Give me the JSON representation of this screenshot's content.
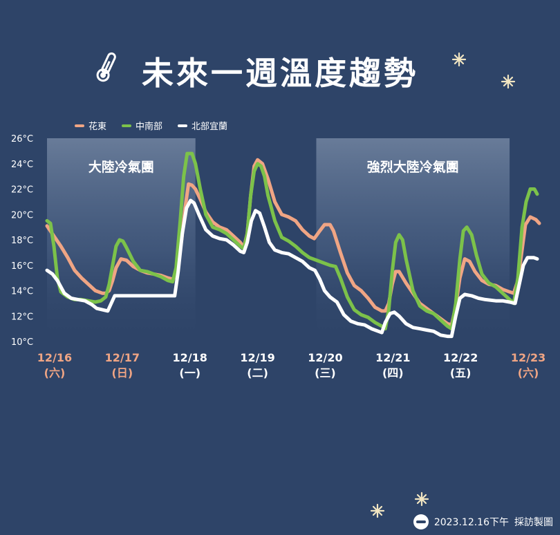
{
  "title": "未來一週溫度趨勢",
  "footer": {
    "date": "2023.12.16下午",
    "credit": "採訪製圖"
  },
  "chart_data": {
    "type": "line",
    "title": "未來一週溫度趨勢",
    "y_tick_labels": [
      "26°C",
      "24°C",
      "22°C",
      "20°C",
      "18°C",
      "16°C",
      "14°C",
      "12°C",
      "10°C"
    ],
    "ylim": [
      10,
      26
    ],
    "xlim": [
      0,
      7.25
    ],
    "legend_position": "top-left",
    "x_ticks": [
      {
        "x": 0.11,
        "date": "12/16",
        "day": "(六)",
        "weekend": true
      },
      {
        "x": 1.09,
        "date": "12/17",
        "day": "(日)",
        "weekend": true
      },
      {
        "x": 2.07,
        "date": "12/18",
        "day": "(一)",
        "weekend": false
      },
      {
        "x": 3.05,
        "date": "12/19",
        "day": "(二)",
        "weekend": false
      },
      {
        "x": 4.03,
        "date": "12/20",
        "day": "(三)",
        "weekend": false
      },
      {
        "x": 5.01,
        "date": "12/21",
        "day": "(四)",
        "weekend": false
      },
      {
        "x": 5.99,
        "date": "12/22",
        "day": "(五)",
        "weekend": false
      },
      {
        "x": 6.97,
        "date": "12/23",
        "day": "(六)",
        "weekend": true
      }
    ],
    "bands": [
      {
        "label": "大陸冷氣團",
        "x_start": 0.0,
        "x_end": 2.15
      },
      {
        "label": "強烈大陸冷氣團",
        "x_start": 3.9,
        "x_end": 6.7
      }
    ],
    "series": [
      {
        "name": "花東",
        "color": "#f0a584",
        "points": [
          [
            0.0,
            19.1
          ],
          [
            0.1,
            18.3
          ],
          [
            0.2,
            17.5
          ],
          [
            0.3,
            16.6
          ],
          [
            0.4,
            15.6
          ],
          [
            0.5,
            15.0
          ],
          [
            0.6,
            14.5
          ],
          [
            0.7,
            14.0
          ],
          [
            0.8,
            13.8
          ],
          [
            0.85,
            13.8
          ],
          [
            0.9,
            14.0
          ],
          [
            0.95,
            14.8
          ],
          [
            1.0,
            15.8
          ],
          [
            1.07,
            16.5
          ],
          [
            1.15,
            16.4
          ],
          [
            1.25,
            15.9
          ],
          [
            1.35,
            15.6
          ],
          [
            1.45,
            15.4
          ],
          [
            1.55,
            15.3
          ],
          [
            1.65,
            15.2
          ],
          [
            1.75,
            15.0
          ],
          [
            1.83,
            14.9
          ],
          [
            1.88,
            15.5
          ],
          [
            1.95,
            18.0
          ],
          [
            2.0,
            20.5
          ],
          [
            2.05,
            22.4
          ],
          [
            2.1,
            22.3
          ],
          [
            2.15,
            22.0
          ],
          [
            2.22,
            21.2
          ],
          [
            2.3,
            20.2
          ],
          [
            2.4,
            19.4
          ],
          [
            2.5,
            19.0
          ],
          [
            2.6,
            18.8
          ],
          [
            2.7,
            18.3
          ],
          [
            2.8,
            17.8
          ],
          [
            2.85,
            17.4
          ],
          [
            2.9,
            18.5
          ],
          [
            2.95,
            21.5
          ],
          [
            3.0,
            23.8
          ],
          [
            3.05,
            24.3
          ],
          [
            3.12,
            24.0
          ],
          [
            3.2,
            22.8
          ],
          [
            3.3,
            21.0
          ],
          [
            3.4,
            20.0
          ],
          [
            3.5,
            19.8
          ],
          [
            3.6,
            19.5
          ],
          [
            3.7,
            18.8
          ],
          [
            3.8,
            18.3
          ],
          [
            3.87,
            18.1
          ],
          [
            3.95,
            18.7
          ],
          [
            4.02,
            19.2
          ],
          [
            4.1,
            19.2
          ],
          [
            4.15,
            18.7
          ],
          [
            4.25,
            17.0
          ],
          [
            4.35,
            15.4
          ],
          [
            4.45,
            14.4
          ],
          [
            4.55,
            14.0
          ],
          [
            4.65,
            13.4
          ],
          [
            4.75,
            12.7
          ],
          [
            4.85,
            12.4
          ],
          [
            4.9,
            12.4
          ],
          [
            4.95,
            13.0
          ],
          [
            5.0,
            14.5
          ],
          [
            5.05,
            15.5
          ],
          [
            5.1,
            15.5
          ],
          [
            5.2,
            14.6
          ],
          [
            5.3,
            13.8
          ],
          [
            5.4,
            13.0
          ],
          [
            5.5,
            12.6
          ],
          [
            5.6,
            12.2
          ],
          [
            5.7,
            11.8
          ],
          [
            5.8,
            11.4
          ],
          [
            5.86,
            11.3
          ],
          [
            5.92,
            12.8
          ],
          [
            5.98,
            15.0
          ],
          [
            6.05,
            16.5
          ],
          [
            6.12,
            16.3
          ],
          [
            6.2,
            15.5
          ],
          [
            6.3,
            14.8
          ],
          [
            6.4,
            14.5
          ],
          [
            6.5,
            14.4
          ],
          [
            6.6,
            14.1
          ],
          [
            6.7,
            13.9
          ],
          [
            6.76,
            13.8
          ],
          [
            6.82,
            14.8
          ],
          [
            6.88,
            17.2
          ],
          [
            6.93,
            19.2
          ],
          [
            7.0,
            19.8
          ],
          [
            7.08,
            19.6
          ],
          [
            7.13,
            19.3
          ]
        ]
      },
      {
        "name": "中南部",
        "color": "#7cc24a",
        "points": [
          [
            0.0,
            19.5
          ],
          [
            0.05,
            19.3
          ],
          [
            0.1,
            17.5
          ],
          [
            0.15,
            15.0
          ],
          [
            0.2,
            13.9
          ],
          [
            0.3,
            13.5
          ],
          [
            0.4,
            13.3
          ],
          [
            0.5,
            13.3
          ],
          [
            0.6,
            13.2
          ],
          [
            0.7,
            13.1
          ],
          [
            0.78,
            13.2
          ],
          [
            0.85,
            13.5
          ],
          [
            0.9,
            14.5
          ],
          [
            0.95,
            16.0
          ],
          [
            1.0,
            17.5
          ],
          [
            1.05,
            18.0
          ],
          [
            1.1,
            17.9
          ],
          [
            1.15,
            17.4
          ],
          [
            1.25,
            16.3
          ],
          [
            1.35,
            15.6
          ],
          [
            1.45,
            15.5
          ],
          [
            1.55,
            15.3
          ],
          [
            1.65,
            15.1
          ],
          [
            1.75,
            14.8
          ],
          [
            1.82,
            14.7
          ],
          [
            1.87,
            15.8
          ],
          [
            1.93,
            19.5
          ],
          [
            1.98,
            23.0
          ],
          [
            2.03,
            24.8
          ],
          [
            2.1,
            24.8
          ],
          [
            2.15,
            24.0
          ],
          [
            2.22,
            22.0
          ],
          [
            2.3,
            20.0
          ],
          [
            2.4,
            19.0
          ],
          [
            2.5,
            18.8
          ],
          [
            2.6,
            18.5
          ],
          [
            2.7,
            18.0
          ],
          [
            2.8,
            17.5
          ],
          [
            2.85,
            17.3
          ],
          [
            2.9,
            18.5
          ],
          [
            2.95,
            21.5
          ],
          [
            3.0,
            23.4
          ],
          [
            3.05,
            24.0
          ],
          [
            3.1,
            23.8
          ],
          [
            3.15,
            23.0
          ],
          [
            3.2,
            21.5
          ],
          [
            3.3,
            19.5
          ],
          [
            3.4,
            18.2
          ],
          [
            3.5,
            17.9
          ],
          [
            3.6,
            17.5
          ],
          [
            3.7,
            17.0
          ],
          [
            3.8,
            16.6
          ],
          [
            3.9,
            16.4
          ],
          [
            4.0,
            16.2
          ],
          [
            4.1,
            16.0
          ],
          [
            4.18,
            15.9
          ],
          [
            4.25,
            15.0
          ],
          [
            4.35,
            13.5
          ],
          [
            4.45,
            12.5
          ],
          [
            4.55,
            12.1
          ],
          [
            4.65,
            11.9
          ],
          [
            4.75,
            11.5
          ],
          [
            4.85,
            11.2
          ],
          [
            4.9,
            11.0
          ],
          [
            4.95,
            12.5
          ],
          [
            5.0,
            15.5
          ],
          [
            5.05,
            17.8
          ],
          [
            5.1,
            18.4
          ],
          [
            5.15,
            18.0
          ],
          [
            5.2,
            16.5
          ],
          [
            5.3,
            14.0
          ],
          [
            5.4,
            12.8
          ],
          [
            5.5,
            12.4
          ],
          [
            5.6,
            12.2
          ],
          [
            5.7,
            11.7
          ],
          [
            5.8,
            11.2
          ],
          [
            5.86,
            11.0
          ],
          [
            5.92,
            13.0
          ],
          [
            5.98,
            16.5
          ],
          [
            6.03,
            18.7
          ],
          [
            6.08,
            19.0
          ],
          [
            6.15,
            18.4
          ],
          [
            6.22,
            16.8
          ],
          [
            6.3,
            15.3
          ],
          [
            6.4,
            14.6
          ],
          [
            6.5,
            14.3
          ],
          [
            6.6,
            13.8
          ],
          [
            6.7,
            13.3
          ],
          [
            6.76,
            13.0
          ],
          [
            6.82,
            15.0
          ],
          [
            6.88,
            19.0
          ],
          [
            6.94,
            21.0
          ],
          [
            7.0,
            22.0
          ],
          [
            7.06,
            22.0
          ],
          [
            7.1,
            21.6
          ]
        ]
      },
      {
        "name": "北部宜蘭",
        "color": "#ffffff",
        "points": [
          [
            0.0,
            15.6
          ],
          [
            0.08,
            15.3
          ],
          [
            0.15,
            14.8
          ],
          [
            0.25,
            13.8
          ],
          [
            0.35,
            13.4
          ],
          [
            0.45,
            13.3
          ],
          [
            0.55,
            13.2
          ],
          [
            0.65,
            12.9
          ],
          [
            0.72,
            12.6
          ],
          [
            0.8,
            12.5
          ],
          [
            0.88,
            12.4
          ],
          [
            0.93,
            13.0
          ],
          [
            0.98,
            13.6
          ],
          [
            1.05,
            13.6
          ],
          [
            1.2,
            13.6
          ],
          [
            1.4,
            13.6
          ],
          [
            1.6,
            13.6
          ],
          [
            1.8,
            13.6
          ],
          [
            1.85,
            13.6
          ],
          [
            1.9,
            15.5
          ],
          [
            1.96,
            18.5
          ],
          [
            2.02,
            20.5
          ],
          [
            2.08,
            21.1
          ],
          [
            2.13,
            20.9
          ],
          [
            2.2,
            20.0
          ],
          [
            2.3,
            18.8
          ],
          [
            2.4,
            18.3
          ],
          [
            2.5,
            18.1
          ],
          [
            2.6,
            18.0
          ],
          [
            2.7,
            17.6
          ],
          [
            2.8,
            17.1
          ],
          [
            2.85,
            17.0
          ],
          [
            2.9,
            17.8
          ],
          [
            2.96,
            19.5
          ],
          [
            3.02,
            20.3
          ],
          [
            3.08,
            20.1
          ],
          [
            3.15,
            19.0
          ],
          [
            3.22,
            17.8
          ],
          [
            3.3,
            17.2
          ],
          [
            3.4,
            17.0
          ],
          [
            3.5,
            16.9
          ],
          [
            3.6,
            16.6
          ],
          [
            3.7,
            16.3
          ],
          [
            3.8,
            15.8
          ],
          [
            3.88,
            15.6
          ],
          [
            3.95,
            14.9
          ],
          [
            4.02,
            14.0
          ],
          [
            4.1,
            13.5
          ],
          [
            4.2,
            13.1
          ],
          [
            4.3,
            12.1
          ],
          [
            4.4,
            11.6
          ],
          [
            4.5,
            11.4
          ],
          [
            4.6,
            11.3
          ],
          [
            4.7,
            11.0
          ],
          [
            4.8,
            10.8
          ],
          [
            4.85,
            10.7
          ],
          [
            4.9,
            11.5
          ],
          [
            4.97,
            12.2
          ],
          [
            5.03,
            12.3
          ],
          [
            5.1,
            12.0
          ],
          [
            5.2,
            11.4
          ],
          [
            5.3,
            11.1
          ],
          [
            5.4,
            11.0
          ],
          [
            5.5,
            10.9
          ],
          [
            5.6,
            10.8
          ],
          [
            5.7,
            10.5
          ],
          [
            5.8,
            10.4
          ],
          [
            5.86,
            10.4
          ],
          [
            5.92,
            12.0
          ],
          [
            5.98,
            13.4
          ],
          [
            6.05,
            13.7
          ],
          [
            6.15,
            13.6
          ],
          [
            6.25,
            13.4
          ],
          [
            6.35,
            13.3
          ],
          [
            6.5,
            13.2
          ],
          [
            6.6,
            13.2
          ],
          [
            6.7,
            13.1
          ],
          [
            6.78,
            13.0
          ],
          [
            6.84,
            14.5
          ],
          [
            6.9,
            16.0
          ],
          [
            6.96,
            16.6
          ],
          [
            7.05,
            16.6
          ],
          [
            7.1,
            16.5
          ]
        ]
      }
    ]
  }
}
